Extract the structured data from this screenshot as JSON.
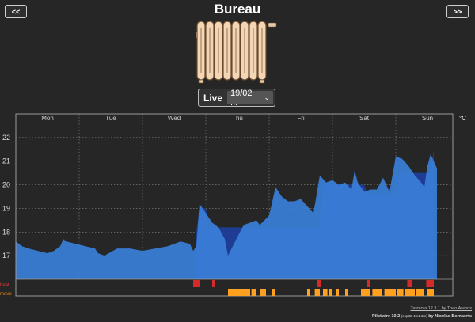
{
  "header": {
    "title": "Bureau",
    "prev_label": "<<",
    "next_label": ">>",
    "live_label": "Live",
    "date_value": "19/02 ...",
    "date_caret": "⌄"
  },
  "colors": {
    "temperature_fill": "#3a7fd8",
    "target_fill": "#1e3d99",
    "heat": "#d42a2a",
    "move": "#ffa020",
    "heat_label": "#e23a3a",
    "move_label": "#f08a10",
    "background": "#262626"
  },
  "chart_data": {
    "type": "area",
    "unit_label": "°C",
    "day_labels": [
      "Mon",
      "Tue",
      "Wed",
      "Thu",
      "Fri",
      "Sat",
      "Sun"
    ],
    "ylim": [
      16,
      23
    ],
    "y_ticks": [
      17,
      18,
      19,
      20,
      21,
      22
    ],
    "x_range": [
      0,
      6.9
    ],
    "grid": true,
    "series": [
      {
        "name": "temperature",
        "x": [
          0,
          0.1,
          0.2,
          0.35,
          0.5,
          0.6,
          0.7,
          0.75,
          0.8,
          0.95,
          1.1,
          1.25,
          1.3,
          1.4,
          1.6,
          1.8,
          2.0,
          2.2,
          2.4,
          2.6,
          2.75,
          2.8,
          2.85,
          2.9,
          3.0,
          3.1,
          3.2,
          3.3,
          3.35,
          3.5,
          3.6,
          3.7,
          3.8,
          3.85,
          4.0,
          4.1,
          4.2,
          4.3,
          4.4,
          4.5,
          4.6,
          4.7,
          4.8,
          4.9,
          5.0,
          5.1,
          5.2,
          5.3,
          5.35,
          5.4,
          5.5,
          5.6,
          5.7,
          5.8,
          5.9,
          6.0,
          6.1,
          6.2,
          6.3,
          6.4,
          6.45,
          6.5,
          6.55,
          6.6,
          6.65
        ],
        "y": [
          17.6,
          17.4,
          17.3,
          17.2,
          17.1,
          17.2,
          17.4,
          17.7,
          17.6,
          17.5,
          17.4,
          17.3,
          17.1,
          17.0,
          17.3,
          17.3,
          17.2,
          17.3,
          17.4,
          17.6,
          17.5,
          17.2,
          17.4,
          19.2,
          18.8,
          18.4,
          18.2,
          17.7,
          17.0,
          17.8,
          18.3,
          18.4,
          18.5,
          18.3,
          18.7,
          19.9,
          19.5,
          19.3,
          19.3,
          19.4,
          19.1,
          18.8,
          20.4,
          20.1,
          20.2,
          20.0,
          20.1,
          19.8,
          20.6,
          20.1,
          19.7,
          19.8,
          19.8,
          20.3,
          19.7,
          21.2,
          21.1,
          20.8,
          20.4,
          20.1,
          19.9,
          20.8,
          21.3,
          21.0,
          20.7
        ]
      },
      {
        "name": "target",
        "x": [
          2.85,
          2.9,
          3.0,
          3.05,
          4.8,
          4.85,
          5.5,
          5.55,
          5.6,
          6.0,
          6.05,
          6.55,
          6.6
        ],
        "y": [
          18.0,
          19.0,
          19.0,
          18.2,
          18.2,
          20.0,
          20.0,
          19.6,
          19.6,
          19.6,
          20.5,
          20.5,
          21.5
        ]
      }
    ],
    "heat_label": "heat",
    "heat_intervals": [
      [
        2.8,
        2.9
      ],
      [
        3.1,
        3.15
      ],
      [
        4.75,
        4.82
      ],
      [
        5.54,
        5.6
      ],
      [
        6.18,
        6.26
      ],
      [
        6.48,
        6.6
      ]
    ],
    "move_label": "move",
    "move_intervals": [
      [
        3.35,
        3.7
      ],
      [
        3.72,
        3.8
      ],
      [
        3.85,
        3.95
      ],
      [
        4.05,
        4.1
      ],
      [
        4.6,
        4.65
      ],
      [
        4.72,
        4.8
      ],
      [
        4.85,
        4.92
      ],
      [
        4.95,
        5.0
      ],
      [
        5.05,
        5.1
      ],
      [
        5.2,
        5.24
      ],
      [
        5.45,
        5.6
      ],
      [
        5.63,
        5.78
      ],
      [
        5.82,
        6.0
      ],
      [
        6.02,
        6.12
      ],
      [
        6.15,
        6.3
      ],
      [
        6.32,
        6.45
      ],
      [
        6.5,
        6.6
      ]
    ]
  },
  "footer": {
    "tasmota_text": "Tasmota 12.3.1 by Theo Arends",
    "pilotwire_text": "Pilotwire 10.2",
    "pilotwire_sub": "(esp32-4m1.3m)",
    "pilotwire_author": "by Nicolas Bernaerts"
  }
}
